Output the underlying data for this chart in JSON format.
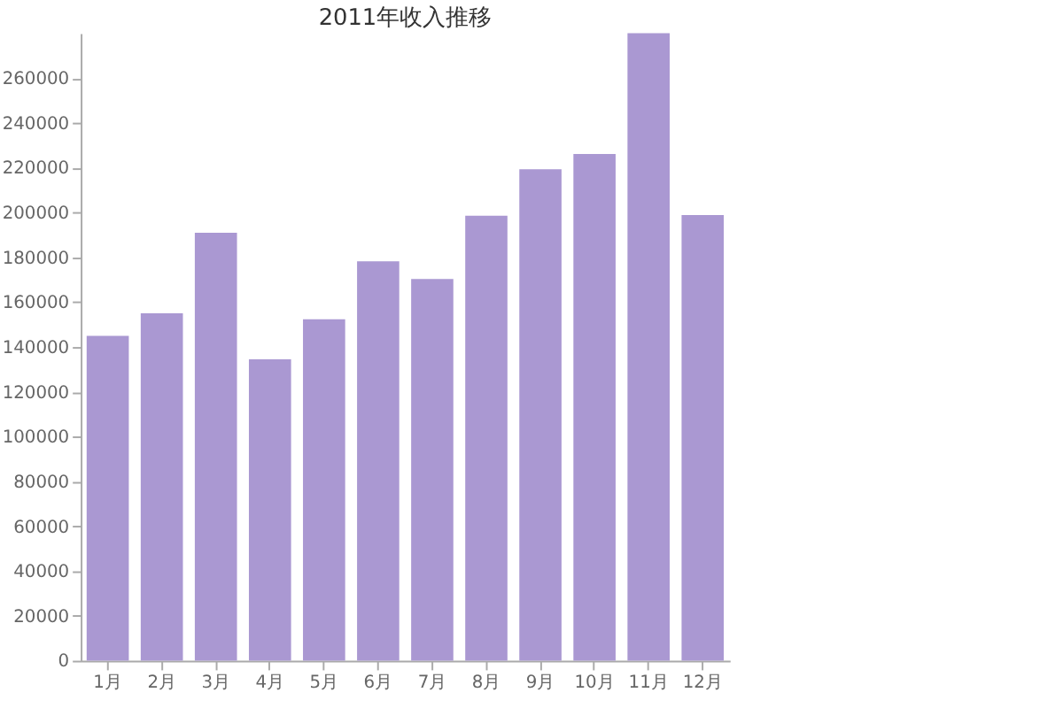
{
  "chart_data": {
    "type": "bar",
    "title": "2011年收入推移",
    "categories": [
      "1月",
      "2月",
      "3月",
      "4月",
      "5月",
      "6月",
      "7月",
      "8月",
      "9月",
      "10月",
      "11月",
      "12月"
    ],
    "values": [
      145000,
      155000,
      191000,
      134500,
      152400,
      178200,
      170300,
      198600,
      219300,
      226100,
      280000,
      198900
    ],
    "color": "#aa98d2",
    "ylim": [
      0,
      280000
    ],
    "yticks": [
      0,
      20000,
      40000,
      60000,
      80000,
      100000,
      120000,
      140000,
      160000,
      180000,
      200000,
      220000,
      240000,
      260000
    ],
    "grid": false
  }
}
